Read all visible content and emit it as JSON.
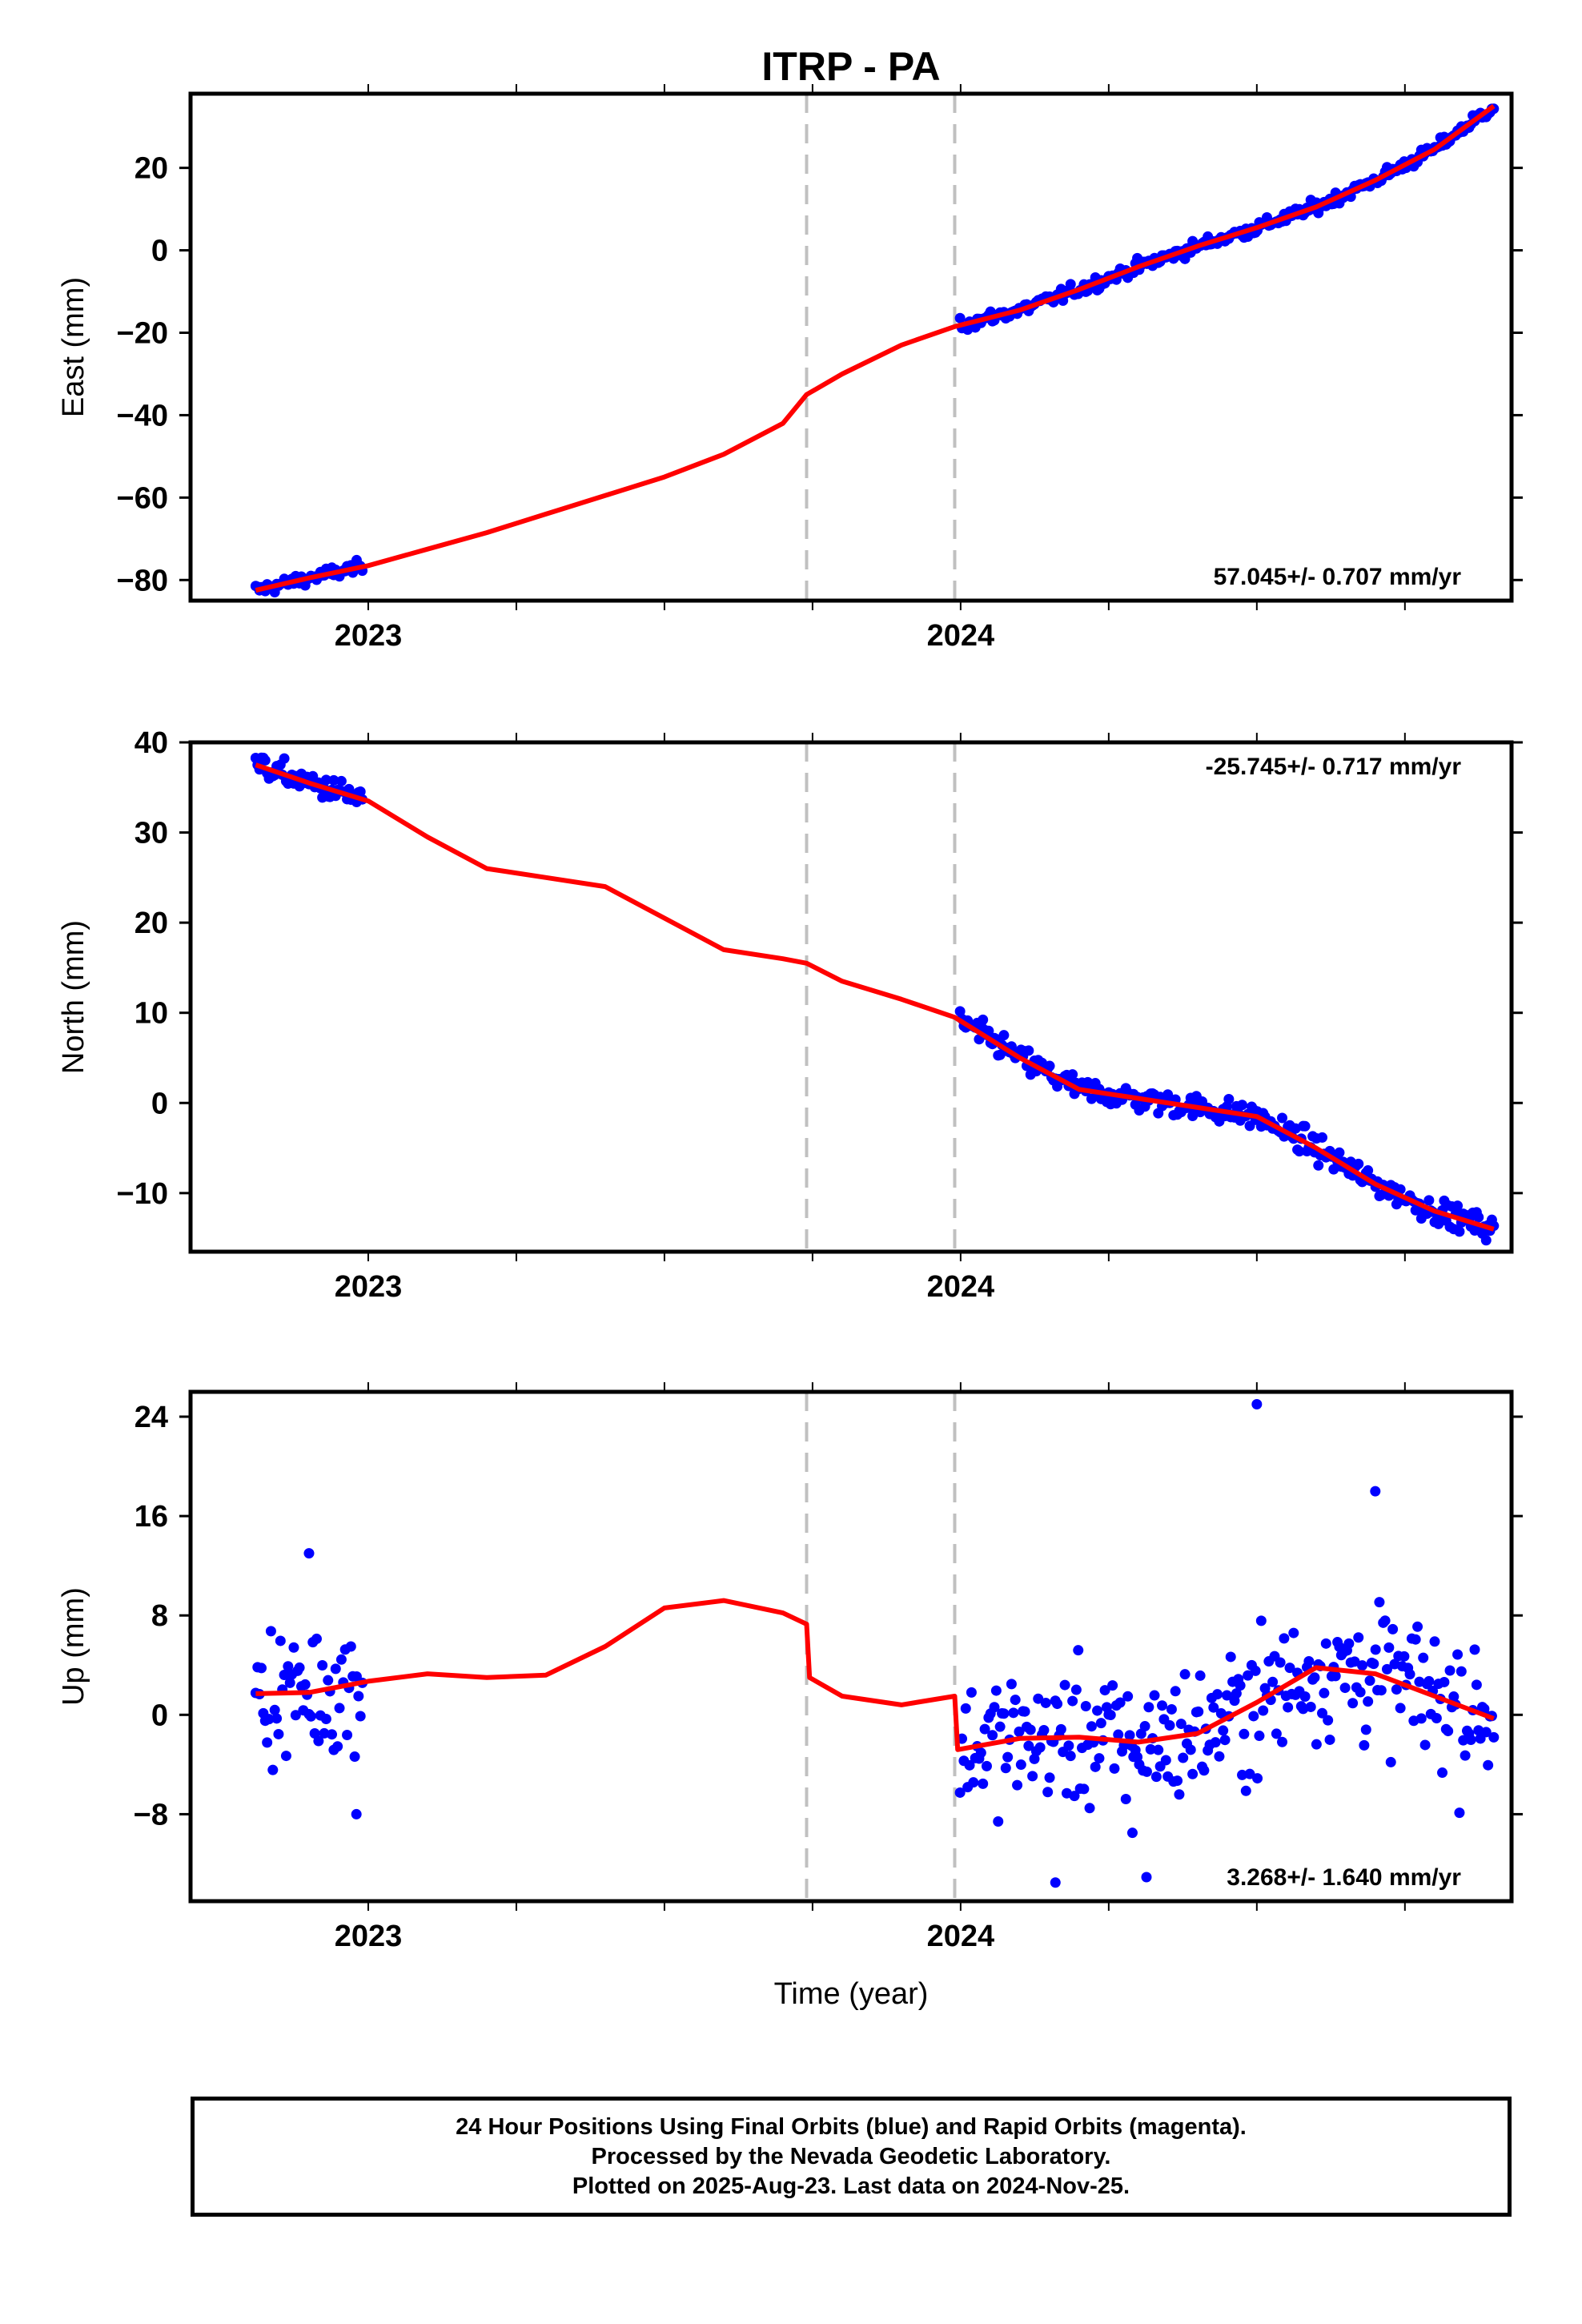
{
  "title": "ITRP - PA",
  "xlabel": "Time (year)",
  "footer": {
    "line1": "24 Hour Positions Using Final Orbits (blue) and Rapid Orbits (magenta).",
    "line2": "Processed by the Nevada Geodetic Laboratory.",
    "line3": "Plotted on 2025-Aug-23. Last data on 2024-Nov-25."
  },
  "chart_data": [
    {
      "type": "scatter",
      "ylabel": "East (mm)",
      "xlim": [
        2022.7,
        2024.93
      ],
      "ylim": [
        -85,
        38
      ],
      "x_ticks": [
        2023,
        2024
      ],
      "x_tick_labels": [
        "2023",
        "2024"
      ],
      "y_ticks": [
        20,
        0,
        -20,
        -40,
        -60,
        -80
      ],
      "y_tick_labels": [
        "20",
        "0",
        "−20",
        "−40",
        "−60",
        "−80"
      ],
      "rate_label": "57.045+/- 0.707 mm/yr",
      "rate_position": "bottom-right",
      "breaks": [
        2023.74,
        2023.99
      ],
      "point_color": "#0000ff",
      "model_color": "#ff0000",
      "data_segments": [
        {
          "x0": 2022.81,
          "x1": 2022.99,
          "y0": -82,
          "y1": -77,
          "scatter": 1.6
        },
        {
          "x0": 2023.999,
          "x1": 2024.9,
          "y0": -18.5,
          "y1": 35,
          "scatter": 1.6
        }
      ],
      "model": {
        "x": [
          2022.81,
          2022.9,
          2023.0,
          2023.1,
          2023.2,
          2023.3,
          2023.4,
          2023.5,
          2023.6,
          2023.7,
          2023.74,
          2023.8,
          2023.9,
          2023.99,
          2024.1,
          2024.2,
          2024.3,
          2024.4,
          2024.5,
          2024.6,
          2024.7,
          2024.8,
          2024.9
        ],
        "y": [
          -82.5,
          -79.5,
          -76.5,
          -72.5,
          -68.5,
          -64,
          -59.5,
          -55,
          -49.5,
          -42,
          -35,
          -30,
          -23,
          -18.5,
          -14.5,
          -9.5,
          -4,
          1,
          5.5,
          10.5,
          17,
          24.5,
          35
        ]
      }
    },
    {
      "type": "scatter",
      "ylabel": "North (mm)",
      "xlim": [
        2022.7,
        2024.93
      ],
      "ylim": [
        -16.5,
        40
      ],
      "x_ticks": [
        2023,
        2024
      ],
      "x_tick_labels": [
        "2023",
        "2024"
      ],
      "y_ticks": [
        40,
        30,
        20,
        10,
        0,
        -10
      ],
      "y_tick_labels": [
        "40",
        "30",
        "20",
        "10",
        "0",
        "−10"
      ],
      "rate_label": "-25.745+/- 0.717 mm/yr",
      "rate_position": "top-right",
      "breaks": [
        2023.74,
        2023.99
      ],
      "point_color": "#0000ff",
      "model_color": "#ff0000",
      "data_segments": [
        {
          "x0": 2022.81,
          "x1": 2022.99,
          "y0": 37,
          "y1": 34.5,
          "scatter": 1.4
        },
        {
          "x0": 2023.999,
          "x1": 2024.9,
          "y0": 10,
          "y1": -13.5,
          "scatter": 1.4
        }
      ],
      "model": {
        "x": [
          2022.81,
          2022.9,
          2023.0,
          2023.1,
          2023.2,
          2023.3,
          2023.4,
          2023.5,
          2023.6,
          2023.7,
          2023.74,
          2023.8,
          2023.9,
          2023.99,
          2024.1,
          2024.2,
          2024.3,
          2024.4,
          2024.5,
          2024.6,
          2024.7,
          2024.8,
          2024.9
        ],
        "y": [
          37.5,
          35.5,
          33.5,
          29.5,
          26,
          25,
          24,
          20.5,
          17,
          16,
          15.5,
          13.5,
          11.5,
          9.5,
          5,
          1.5,
          0.5,
          -0.5,
          -1.5,
          -5,
          -9,
          -12,
          -14
        ]
      }
    },
    {
      "type": "scatter",
      "ylabel": "Up (mm)",
      "xlim": [
        2022.7,
        2024.93
      ],
      "ylim": [
        -15,
        26
      ],
      "x_ticks": [
        2023,
        2024
      ],
      "x_tick_labels": [
        "2023",
        "2024"
      ],
      "y_ticks": [
        24,
        16,
        8,
        0,
        -8
      ],
      "y_tick_labels": [
        "24",
        "16",
        "8",
        "0",
        "−8"
      ],
      "rate_label": "3.268+/- 1.640 mm/yr",
      "rate_position": "bottom-right",
      "breaks": [
        2023.74,
        2023.99
      ],
      "point_color": "#0000ff",
      "model_color": "#ff0000",
      "data_segments": [
        {
          "x0": 2022.81,
          "x1": 2022.99,
          "y0": 1.5,
          "y1": 2.5,
          "scatter": 5.5
        },
        {
          "x0": 2023.999,
          "x1": 2024.9,
          "y0": -2,
          "y1": 0,
          "scatter": 5.5
        }
      ],
      "model": {
        "x": [
          2022.81,
          2022.9,
          2023.0,
          2023.1,
          2023.2,
          2023.3,
          2023.4,
          2023.5,
          2023.6,
          2023.7,
          2023.74,
          2023.745,
          2023.8,
          2023.9,
          2023.99,
          2023.995,
          2024.1,
          2024.2,
          2024.3,
          2024.4,
          2024.5,
          2024.6,
          2024.7,
          2024.8,
          2024.9
        ],
        "y": [
          1.7,
          1.8,
          2.7,
          3.3,
          3.0,
          3.2,
          5.5,
          8.6,
          9.2,
          8.2,
          7.3,
          3.0,
          1.5,
          0.8,
          1.5,
          -2.8,
          -1.9,
          -1.8,
          -2.2,
          -1.5,
          1.0,
          3.8,
          3.3,
          1.5,
          -0.3
        ]
      },
      "outliers": [
        {
          "x": 2022.9,
          "y": 13
        },
        {
          "x": 2022.98,
          "y": -8
        },
        {
          "x": 2024.5,
          "y": 25
        },
        {
          "x": 2024.7,
          "y": 18
        },
        {
          "x": 2024.16,
          "y": -13.5
        },
        {
          "x": 2024.29,
          "y": -9.5
        }
      ]
    }
  ]
}
